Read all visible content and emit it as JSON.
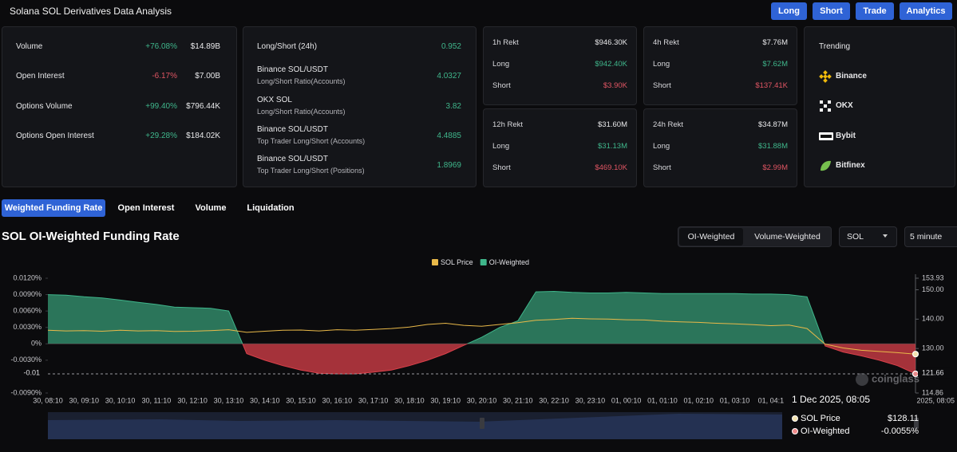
{
  "header": {
    "title": "Solana SOL Derivatives Data Analysis",
    "buttons": [
      "Long",
      "Short",
      "Trade",
      "Analytics"
    ]
  },
  "market": {
    "rows": [
      {
        "label": "Volume",
        "change": "+76.08%",
        "value": "$14.89B"
      },
      {
        "label": "Open Interest",
        "change": "-6.17%",
        "value": "$7.00B"
      },
      {
        "label": "Options Volume",
        "change": "+99.40%",
        "value": "$796.44K"
      },
      {
        "label": "Options Open Interest",
        "change": "+29.28%",
        "value": "$184.02K"
      }
    ]
  },
  "long_short": {
    "rows": [
      {
        "label": "Long/Short (24h)",
        "value": "0.952"
      },
      {
        "label": "Binance SOL/USDT",
        "sub": "Long/Short Ratio(Accounts)",
        "value": "4.0327"
      },
      {
        "label": "OKX SOL",
        "sub": "Long/Short Ratio(Accounts)",
        "value": "3.82"
      },
      {
        "label": "Binance SOL/USDT",
        "sub": "Top Trader Long/Short (Accounts)",
        "value": "4.4885"
      },
      {
        "label": "Binance SOL/USDT",
        "sub": "Top Trader Long/Short (Positions)",
        "value": "1.8969"
      }
    ]
  },
  "rekt": [
    {
      "title": "1h Rekt",
      "total": "$946.30K",
      "long_label": "Long",
      "long": "$942.40K",
      "short_label": "Short",
      "short": "$3.90K"
    },
    {
      "title": "4h Rekt",
      "total": "$7.76M",
      "long_label": "Long",
      "long": "$7.62M",
      "short_label": "Short",
      "short": "$137.41K"
    },
    {
      "title": "12h Rekt",
      "total": "$31.60M",
      "long_label": "Long",
      "long": "$31.13M",
      "short_label": "Short",
      "short": "$469.10K"
    },
    {
      "title": "24h Rekt",
      "total": "$34.87M",
      "long_label": "Long",
      "long": "$31.88M",
      "short_label": "Short",
      "short": "$2.99M"
    }
  ],
  "trending": {
    "title": "Trending",
    "exchanges": [
      "Binance",
      "OKX",
      "Bybit",
      "Bitfinex"
    ]
  },
  "tabs": {
    "items": [
      "Weighted Funding Rate",
      "Open Interest",
      "Volume",
      "Liquidation"
    ],
    "active": 0
  },
  "controls": {
    "weighting": [
      "OI-Weighted",
      "Volume-Weighted"
    ],
    "weighting_active": 0,
    "symbol": "SOL",
    "interval": "5 minute"
  },
  "chart_data": {
    "type": "area",
    "title": "SOL OI-Weighted Funding Rate",
    "categories": [
      "30, 08:10",
      null,
      "30, 09:10",
      null,
      "30, 10:10",
      null,
      "30, 11:10",
      null,
      "30, 12:10",
      null,
      "30, 13:10",
      null,
      "30, 14:10",
      null,
      "30, 15:10",
      null,
      "30, 16:10",
      null,
      "30, 17:10",
      null,
      "30, 18:10",
      null,
      "30, 19:10",
      null,
      "30, 20:10",
      null,
      "30, 21:10",
      null,
      "30, 22:10",
      null,
      "30, 23:10",
      null,
      "01, 00:10",
      null,
      "01, 01:10",
      null,
      "01, 02:10",
      null,
      "01, 03:10",
      null,
      "01, 04:1",
      null,
      null,
      null,
      null,
      null,
      null,
      null,
      "2025, 08:05"
    ],
    "series": [
      {
        "name": "SOL Price",
        "type": "line",
        "axis": "y2",
        "color": "#e9b949",
        "values": [
          136.2,
          136.0,
          136.1,
          135.9,
          136.2,
          136.0,
          136.1,
          135.8,
          135.9,
          136.1,
          136.4,
          135.5,
          135.9,
          136.2,
          136.3,
          136.0,
          136.4,
          136.2,
          136.5,
          136.8,
          137.3,
          138.2,
          138.6,
          137.9,
          137.6,
          138.2,
          138.8,
          139.6,
          139.9,
          140.3,
          140.1,
          140.0,
          139.8,
          139.7,
          139.3,
          139.1,
          138.9,
          138.6,
          138.4,
          138.1,
          137.8,
          138.0,
          136.8,
          131.5,
          130.2,
          129.4,
          129.0,
          128.6,
          128.11
        ]
      },
      {
        "name": "OI-Weighted",
        "type": "area",
        "color": "#3fb68b",
        "negative_color": "#d9404a",
        "values": [
          0.009,
          0.0089,
          0.0086,
          0.0084,
          0.008,
          0.0076,
          0.0072,
          0.0067,
          0.0066,
          0.0065,
          0.006,
          -0.0018,
          -0.003,
          -0.004,
          -0.0048,
          -0.0054,
          -0.0055,
          -0.0055,
          -0.0052,
          -0.0048,
          -0.004,
          -0.003,
          -0.0018,
          -0.0003,
          0.0012,
          0.003,
          0.0042,
          0.0095,
          0.0096,
          0.0094,
          0.0093,
          0.0093,
          0.0094,
          0.0093,
          0.0092,
          0.0092,
          0.0092,
          0.0092,
          0.0092,
          0.0091,
          0.0091,
          0.009,
          0.0086,
          -0.0004,
          -0.0015,
          -0.0022,
          -0.003,
          -0.004,
          -0.0055
        ]
      }
    ],
    "ylim": [
      -0.009,
      0.012
    ],
    "yticks": [
      {
        "value": 0.012,
        "label": "0.0120%"
      },
      {
        "value": 0.009,
        "label": "0.0090%"
      },
      {
        "value": 0.006,
        "label": "0.0060%"
      },
      {
        "value": 0.003,
        "label": "0.0030%"
      },
      {
        "value": 0,
        "label": "0%"
      },
      {
        "value": -0.003,
        "label": "-0.0030%"
      },
      {
        "value": -0.009,
        "label": "-0.0090%"
      }
    ],
    "y2lim": [
      114.86,
      153.93
    ],
    "y2ticks": [
      153.93,
      {
        "value": 150,
        "label": "150.00"
      },
      {
        "value": 140,
        "label": "140.00"
      },
      {
        "value": 130,
        "label": "130.00"
      },
      114.86
    ],
    "grid": false,
    "legend": "top",
    "crosshair": {
      "y": {
        "value": -0.0055,
        "label": "-0.01"
      },
      "y2": 121.66
    },
    "tooltip": {
      "date": "1 Dec 2025, 08:05",
      "items": [
        {
          "name": "SOL Price",
          "value": "$128.11"
        },
        {
          "name": "OI-Weighted",
          "value": "-0.0055%"
        }
      ]
    },
    "watermark": "coinglass"
  }
}
